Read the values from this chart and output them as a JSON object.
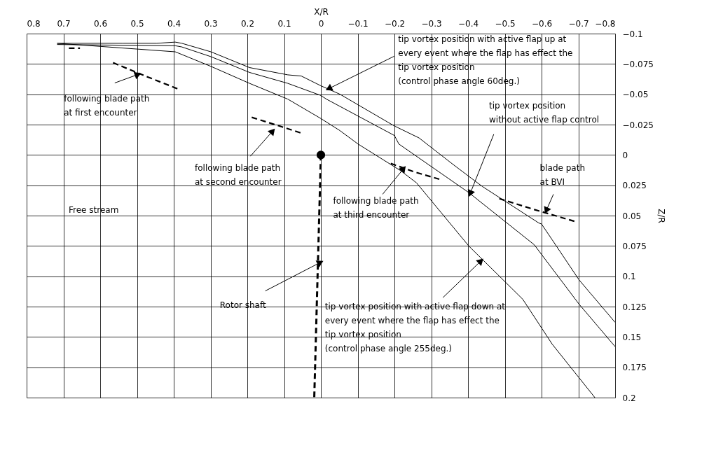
{
  "chart_data": {
    "type": "line",
    "xlabel": "X/R",
    "ylabel": "Z/R",
    "xlim": [
      0.8,
      -0.8
    ],
    "xticks": [
      0.8,
      0.7,
      0.6,
      0.5,
      0.4,
      0.3,
      0.2,
      0.1,
      0,
      -0.1,
      -0.2,
      -0.3,
      -0.4,
      -0.5,
      -0.6,
      -0.7,
      -0.8
    ],
    "ylim": [
      0.2,
      -0.1
    ],
    "yticks": [
      -0.1,
      -0.075,
      -0.05,
      -0.025,
      0,
      0.025,
      0.05,
      0.075,
      0.1,
      0.125,
      0.15,
      0.175,
      0.2
    ],
    "grid": true,
    "marker": "none",
    "series": [
      {
        "color": "#000000",
        "line_style": "solid",
        "x": [
          0.717,
          0.538,
          0.446,
          0.396,
          0.378,
          0.299,
          0.194,
          0.09,
          0.053,
          0,
          -0.052,
          -0.199,
          -0.267,
          -0.36,
          -0.439,
          -0.592,
          -0.6,
          -0.629,
          -0.702,
          -0.8
        ],
        "values": [
          -0.092,
          -0.092,
          -0.092,
          -0.093,
          -0.092,
          -0.085,
          -0.072,
          -0.066,
          -0.065,
          -0.057,
          -0.05,
          -0.024,
          -0.014,
          0.008,
          0.026,
          0.056,
          0.057,
          0.07,
          0.103,
          0.138
        ]
      },
      {
        "color": "#000000",
        "line_style": "solid",
        "x": [
          0.717,
          0.396,
          0.378,
          0.299,
          0.194,
          0.09,
          0,
          -0.015,
          -0.2,
          -0.212,
          -0.402,
          -0.58,
          -0.702,
          -0.8
        ],
        "values": [
          -0.091,
          -0.09,
          -0.089,
          -0.081,
          -0.068,
          -0.059,
          -0.049,
          -0.046,
          -0.016,
          -0.009,
          0.031,
          0.074,
          0.123,
          0.158
        ]
      },
      {
        "color": "#000000",
        "line_style": "solid",
        "x": [
          0.717,
          0.396,
          0.299,
          0.194,
          0.09,
          0,
          -0.052,
          -0.101,
          -0.217,
          -0.26,
          -0.402,
          -0.549,
          -0.629,
          -0.745
        ],
        "values": [
          -0.092,
          -0.085,
          -0.073,
          -0.059,
          -0.046,
          -0.03,
          -0.02,
          -0.009,
          0.013,
          0.023,
          0.075,
          0.119,
          0.156,
          0.2
        ]
      },
      {
        "type": "line",
        "color": "#000000",
        "line_style": "dashed",
        "x": [
          0.685,
          0.655
        ],
        "values": [
          -0.088,
          -0.088
        ]
      },
      {
        "type": "line",
        "color": "#000000",
        "line_style": "dashed",
        "x": [
          0.565,
          0.477,
          0.385
        ],
        "values": [
          -0.076,
          -0.065,
          -0.054
        ]
      },
      {
        "type": "line",
        "color": "#000000",
        "line_style": "dashed",
        "x": [
          0.188,
          0.114,
          0.053
        ],
        "values": [
          -0.031,
          -0.024,
          -0.018
        ]
      },
      {
        "type": "line",
        "color": "#000000",
        "line_style": "dashed",
        "x": [
          -0.19,
          -0.254,
          -0.322
        ],
        "values": [
          0.007,
          0.014,
          0.02
        ]
      },
      {
        "type": "line",
        "color": "#000000",
        "line_style": "dashed",
        "x": [
          -0.485,
          -0.58,
          -0.693
        ],
        "values": [
          0.036,
          0.045,
          0.055
        ]
      },
      {
        "type": "line",
        "color": "#000000",
        "line_style": "dashed",
        "x": [
          0,
          0.018
        ],
        "values": [
          0,
          0.2
        ]
      },
      {
        "type": "scatter",
        "color": "#000000",
        "marker": "circle",
        "x": [
          0
        ],
        "values": [
          0
        ]
      }
    ],
    "annotations": [
      {
        "text": "following blade path\nat first encounter",
        "x": 0.5,
        "y": -0.066
      },
      {
        "text": "following blade path\nat second encounter",
        "x": 0.133,
        "y": -0.019
      },
      {
        "text": "following blade path\nat third encounter",
        "x": -0.223,
        "y": 0.012
      },
      {
        "text": "blade path\nat BVI",
        "x": -0.614,
        "y": 0.045
      },
      {
        "text": "tip vortex position\nwithout active flap control",
        "x": -0.407,
        "y": 0.031
      },
      {
        "text": "tip vortex position with active flap up at\nevery event where the flap has effect the\ntip vortex position\n(control phase angle 60deg.)",
        "x": -0.024,
        "y": -0.055
      },
      {
        "text": "Rotor shaft",
        "x": 0.004,
        "y": 0.089
      },
      {
        "text": "tip vortex position with active flap down at\nevery event where the flap has effect the\ntip vortex position\n(control phase angle 255deg.)",
        "x": -0.433,
        "y": 0.088
      },
      "Free stream"
    ]
  }
}
